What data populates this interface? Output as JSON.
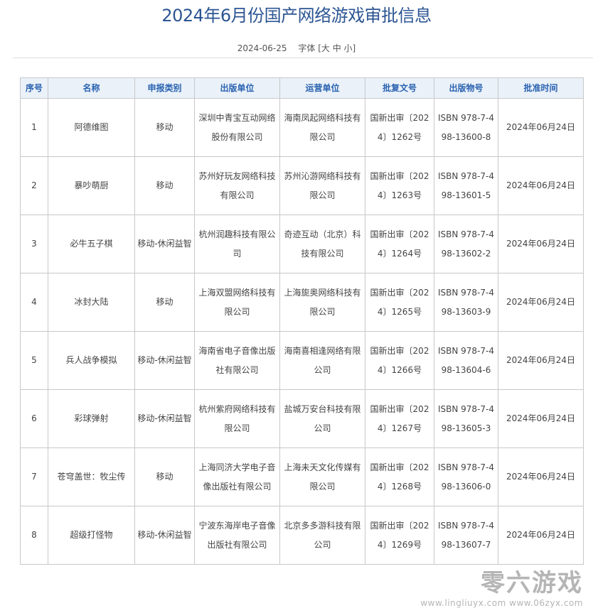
{
  "title": "2024年6月份国产网络游戏审批信息",
  "meta": {
    "date": "2024-06-25",
    "font_label": "字体",
    "font_sizes": "[大 中 小]"
  },
  "table": {
    "headers": [
      "序号",
      "名称",
      "申报类别",
      "出版单位",
      "运营单位",
      "批复文号",
      "出版物号",
      "批准时间"
    ],
    "rows": [
      [
        "1",
        "阿德维图",
        "移动",
        "深圳中青宝互动网络股份有限公司",
        "海南凤起网络科技有限公司",
        "国新出审〔2024〕1262号",
        "ISBN 978-7-498-13600-8",
        "2024年06月24日"
      ],
      [
        "2",
        "暴吵萌厨",
        "移动",
        "苏州好玩友网络科技有限公司",
        "苏州沁游网络科技有限公司",
        "国新出审〔2024〕1263号",
        "ISBN 978-7-498-13601-5",
        "2024年06月24日"
      ],
      [
        "3",
        "必牛五子棋",
        "移动-休闲益智",
        "杭州润趣科技有限公司",
        "奇迹互动（北京）科技有限公司",
        "国新出审〔2024〕1264号",
        "ISBN 978-7-498-13602-2",
        "2024年06月24日"
      ],
      [
        "4",
        "冰封大陆",
        "移动",
        "上海双盟网络科技有限公司",
        "上海旎奥网络科技有限公司",
        "国新出审〔2024〕1265号",
        "ISBN 978-7-498-13603-9",
        "2024年06月24日"
      ],
      [
        "5",
        "兵人战争模拟",
        "移动-休闲益智",
        "海南省电子音像出版社有限公司",
        "海南喜相逢网络有限公司",
        "国新出审〔2024〕1266号",
        "ISBN 978-7-498-13604-6",
        "2024年06月24日"
      ],
      [
        "6",
        "彩球弹射",
        "移动-休闲益智",
        "杭州紫府网络科技有限公司",
        "盐城万安台科技有限公司",
        "国新出审〔2024〕1267号",
        "ISBN 978-7-498-13605-3",
        "2024年06月24日"
      ],
      [
        "7",
        "苍穹盖世：牧尘传",
        "移动",
        "上海同济大学电子音像出版社有限公司",
        "上海未天文化传媒有限公司",
        "国新出审〔2024〕1268号",
        "ISBN 978-7-498-13606-0",
        "2024年06月24日"
      ],
      [
        "8",
        "超级打怪物",
        "移动-休闲益智",
        "宁波东海岸电子音像出版社有限公司",
        "北京多多游科技有限公司",
        "国新出审〔2024〕1269号",
        "ISBN 978-7-498-13607-7",
        "2024年06月24日"
      ]
    ]
  },
  "watermark": {
    "brand": "零六游戏",
    "urls": "www.lingliuyx.com  www.06zyx.com"
  }
}
